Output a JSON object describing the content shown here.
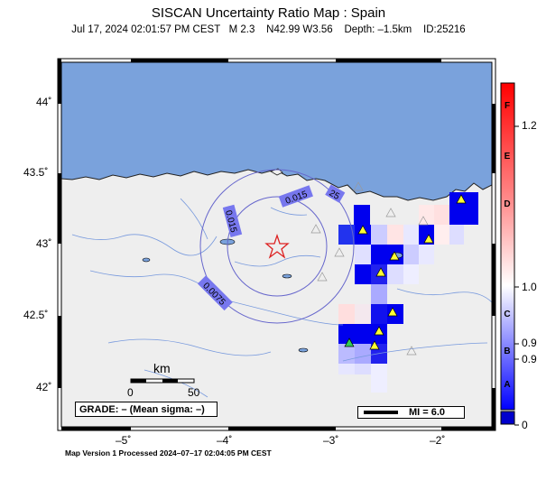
{
  "header": {
    "title": "SISCAN Uncertainty Ratio Map : Spain",
    "subtitle": "Jul 17, 2024 02:01:57 PM CEST   M 2.3    N42.99 W3.56    Depth: –1.5km    ID:25216"
  },
  "axes": {
    "lat_labels": [
      "44˚",
      "43.5˚",
      "43˚",
      "42.5˚",
      "42˚"
    ],
    "lon_labels": [
      "–5˚",
      "–4˚",
      "–3˚",
      "–2˚"
    ]
  },
  "contours": [
    "0.015",
    "0.015",
    "0.0075",
    "25"
  ],
  "scale_bar": {
    "unit": "km",
    "start": "0",
    "end": "50"
  },
  "grade": {
    "text": "GRADE: – (Mean sigma: –)"
  },
  "mi_legend": {
    "text": "MI = 6.0"
  },
  "colorbar": {
    "letters": [
      "F",
      "E",
      "D",
      "C",
      "B",
      "A"
    ],
    "values": [
      "1.2",
      "1.0",
      "0.9",
      "0.9",
      "0"
    ],
    "top_color": "#ff0000",
    "bottom_color": "#0000ff"
  },
  "footer": {
    "text": "Map Version 1 Processed 2024–07–17 02:04:05 PM CEST"
  },
  "colors": {
    "sea": "#7aa2dc",
    "land": "#eeeeee",
    "river": "#7799dd",
    "epicenter": "#dd2222"
  },
  "epicenter_icon": "star-icon"
}
